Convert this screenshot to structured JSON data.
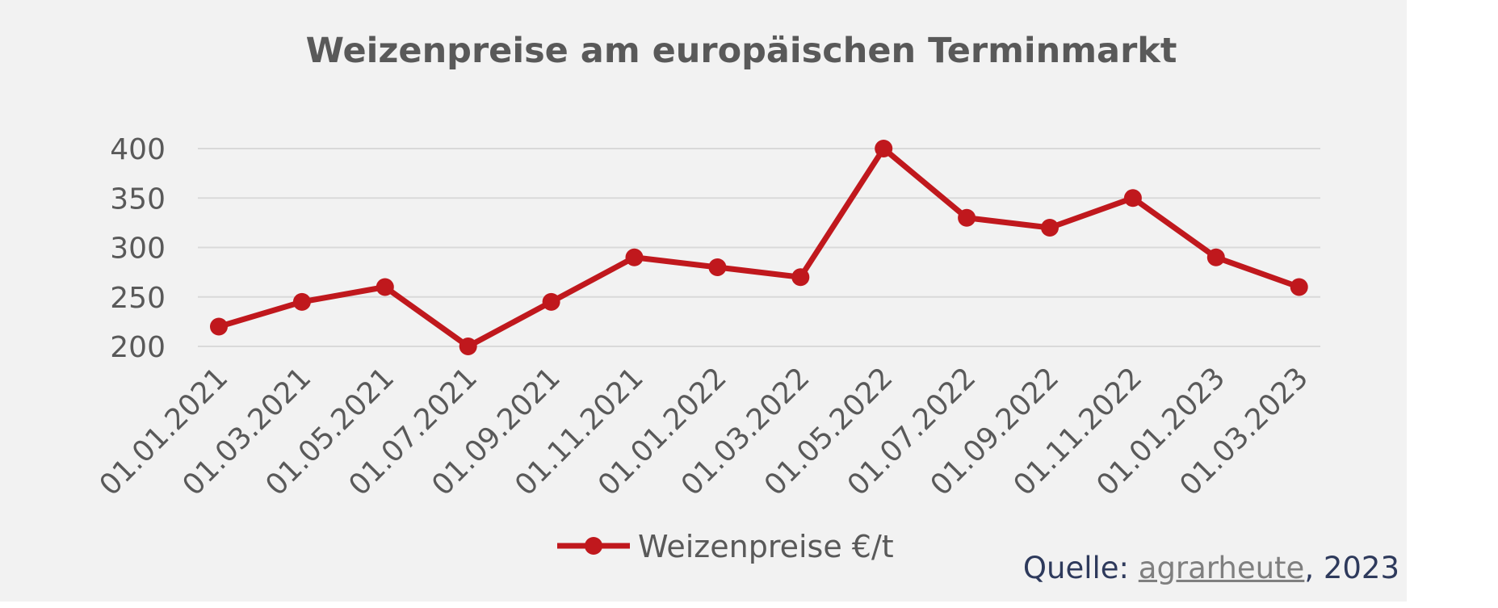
{
  "chart_data": {
    "type": "line",
    "title": "Weizenpreise am europäischen Terminmarkt",
    "categories": [
      "01.01.2021",
      "01.03.2021",
      "01.05.2021",
      "01.07.2021",
      "01.09.2021",
      "01.11.2021",
      "01.01.2022",
      "01.03.2022",
      "01.05.2022",
      "01.07.2022",
      "01.09.2022",
      "01.11.2022",
      "01.01.2023",
      "01.03.2023"
    ],
    "series": [
      {
        "name": "Weizenpreise €/t",
        "values": [
          220,
          245,
          260,
          200,
          245,
          290,
          280,
          270,
          400,
          330,
          320,
          350,
          290,
          260
        ],
        "color": "#c0181d"
      }
    ],
    "y_ticks": [
      "200",
      "250",
      "300",
      "350",
      "400"
    ],
    "ylim": [
      200,
      400
    ],
    "grid": true,
    "legend_position": "bottom"
  },
  "source": {
    "prefix": "Quelle: ",
    "link": "agrarheute",
    "suffix": ", 2023"
  }
}
